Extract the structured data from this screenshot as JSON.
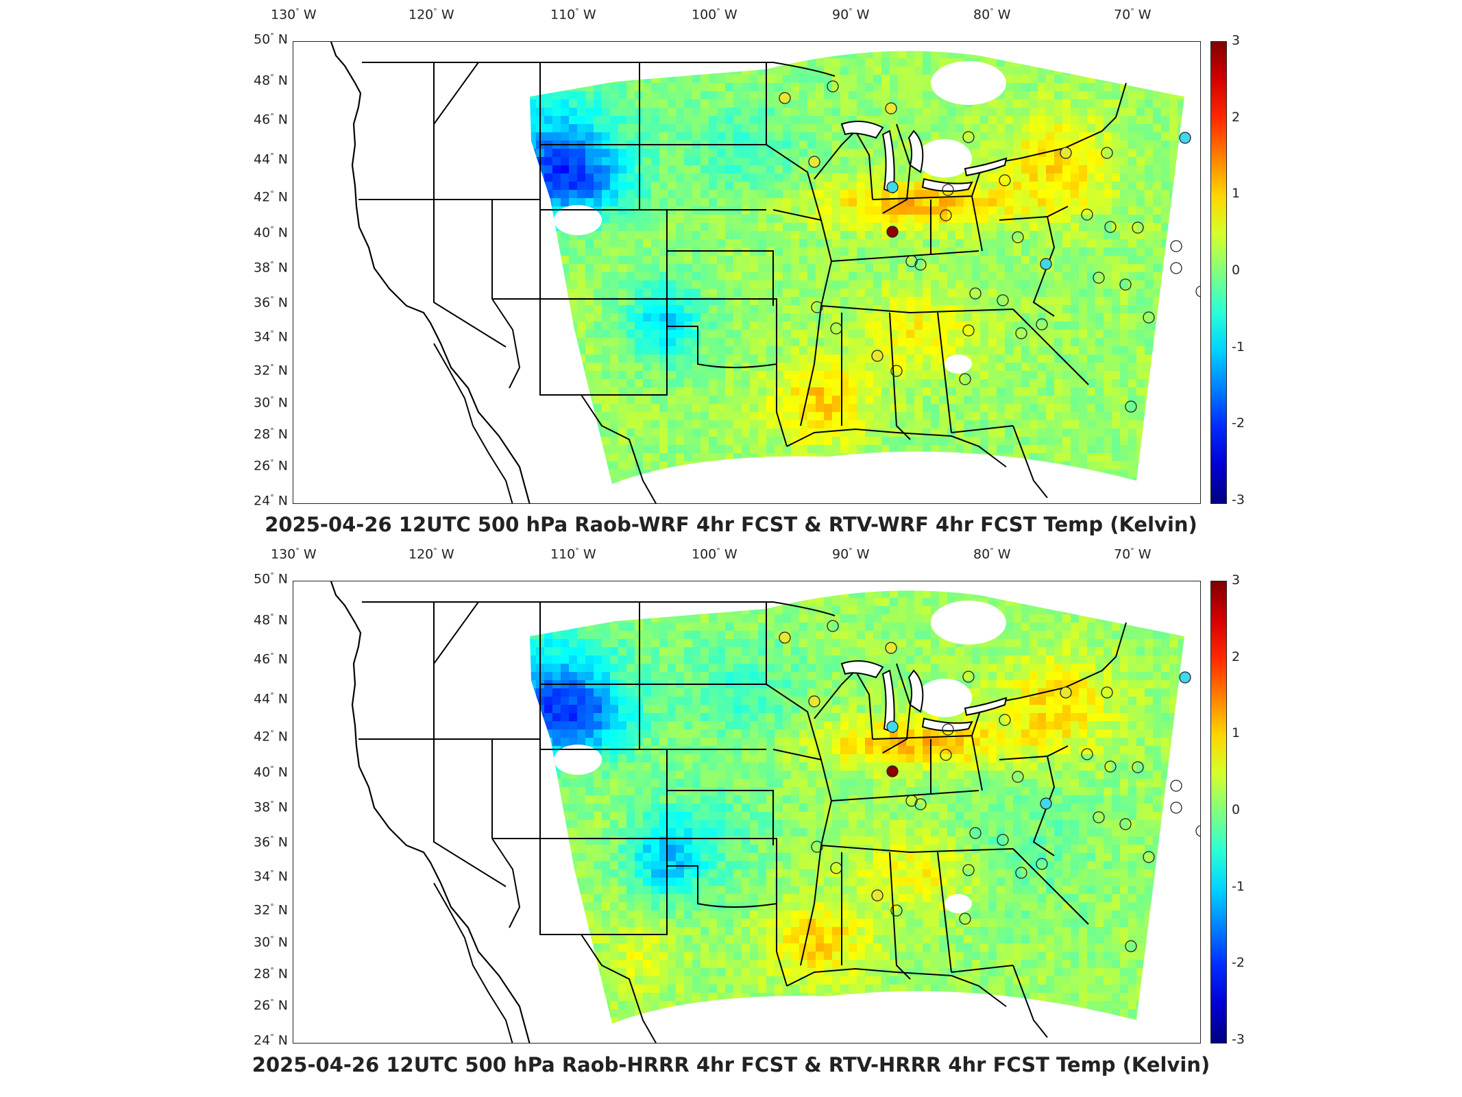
{
  "lon_labels": [
    {
      "deg": "130",
      "dir": "W"
    },
    {
      "deg": "120",
      "dir": "W"
    },
    {
      "deg": "110",
      "dir": "W"
    },
    {
      "deg": "100",
      "dir": "W"
    },
    {
      "deg": "90",
      "dir": "W"
    },
    {
      "deg": "80",
      "dir": "W"
    },
    {
      "deg": "70",
      "dir": "W"
    }
  ],
  "lat_labels": [
    {
      "deg": "50",
      "dir": "N"
    },
    {
      "deg": "48",
      "dir": "N"
    },
    {
      "deg": "46",
      "dir": "N"
    },
    {
      "deg": "44",
      "dir": "N"
    },
    {
      "deg": "42",
      "dir": "N"
    },
    {
      "deg": "40",
      "dir": "N"
    },
    {
      "deg": "38",
      "dir": "N"
    },
    {
      "deg": "36",
      "dir": "N"
    },
    {
      "deg": "34",
      "dir": "N"
    },
    {
      "deg": "32",
      "dir": "N"
    },
    {
      "deg": "30",
      "dir": "N"
    },
    {
      "deg": "28",
      "dir": "N"
    },
    {
      "deg": "26",
      "dir": "N"
    },
    {
      "deg": "24",
      "dir": "N"
    }
  ],
  "colorbar": {
    "ticks": [
      "3",
      "2",
      "1",
      "0",
      "-1",
      "-2",
      "-3"
    ],
    "min": -3,
    "max": 3,
    "colormap": "jet"
  },
  "panels": [
    {
      "title": "2025-04-26 12UTC 500 hPa Raob-WRF 4hr FCST & RTV-WRF 4hr FCST Temp (Kelvin)"
    },
    {
      "title": "2025-04-26 12UTC 500 hPa Raob-HRRR 4hr FCST & RTV-HRRR 4hr FCST Temp (Kelvin)"
    }
  ],
  "colors": {
    "field_green": "#7fe08a",
    "field_cyan": "#3fd8e8",
    "field_yellow": "#e8e040",
    "field_blue": "#2a50e0",
    "raob_red": "#8b0000"
  }
}
